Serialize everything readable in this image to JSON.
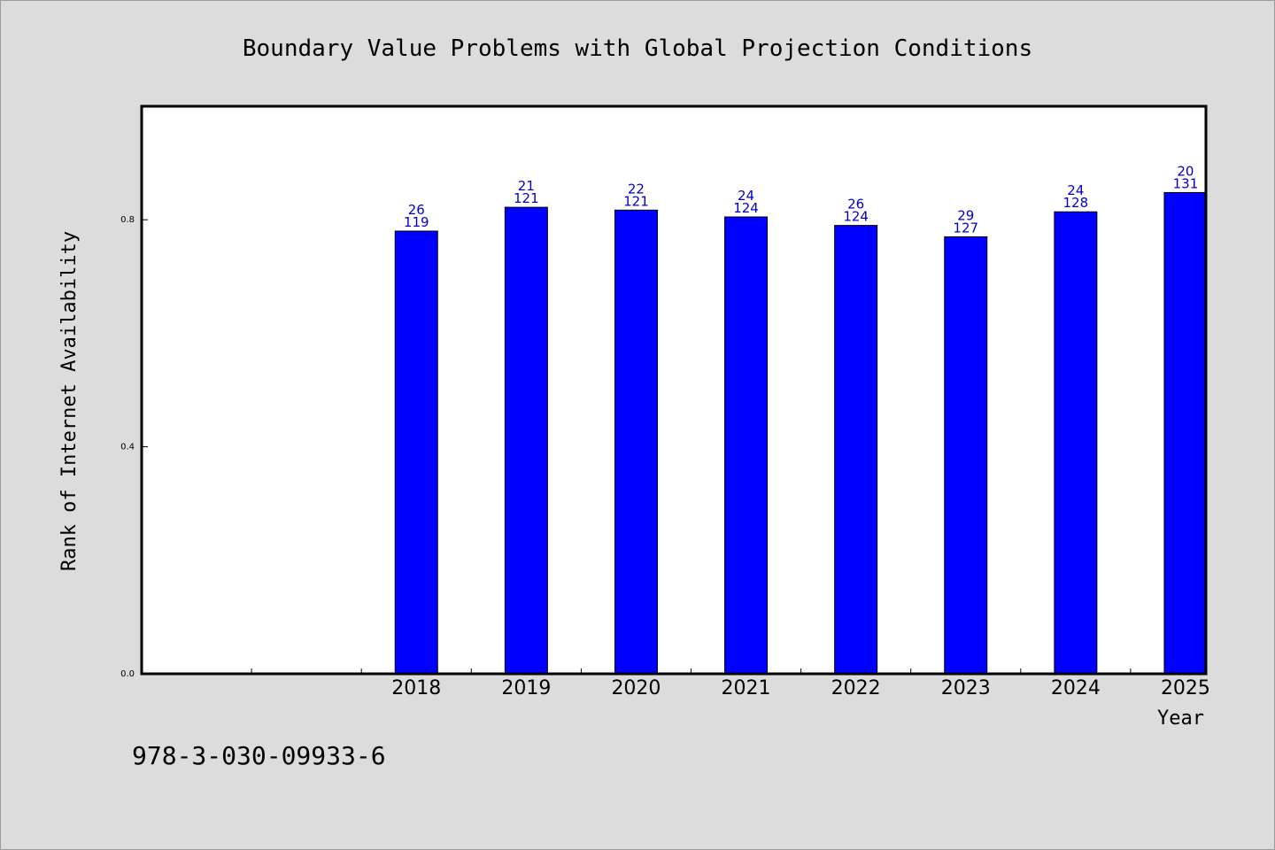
{
  "chart_data": {
    "type": "bar",
    "title": "Boundary Value Problems with Global Projection Conditions",
    "xlabel": "Year",
    "ylabel": "Rank of Internet Availability",
    "categories": [
      "",
      "",
      "2018",
      "2019",
      "2020",
      "2021",
      "2022",
      "2023",
      "2024",
      "2025"
    ],
    "values": [
      null,
      null,
      0.78,
      0.822,
      0.817,
      0.805,
      0.79,
      0.77,
      0.814,
      0.848
    ],
    "labels_top": [
      "",
      "",
      "26",
      "21",
      "22",
      "24",
      "26",
      "29",
      "24",
      "20"
    ],
    "labels_bottom": [
      "",
      "",
      "119",
      "121",
      "121",
      "124",
      "124",
      "127",
      "128",
      "131"
    ],
    "ylim": [
      0,
      1.0
    ],
    "yticks": [
      0.0,
      0.4,
      0.8
    ],
    "ytick_labels": [
      "0.0",
      "0.4",
      "0.8"
    ],
    "grid": false,
    "colors": {
      "bar": "#0000ff",
      "bar_label": "#0000cc"
    }
  },
  "footer": {
    "isbn": "978-3-030-09933-6"
  }
}
